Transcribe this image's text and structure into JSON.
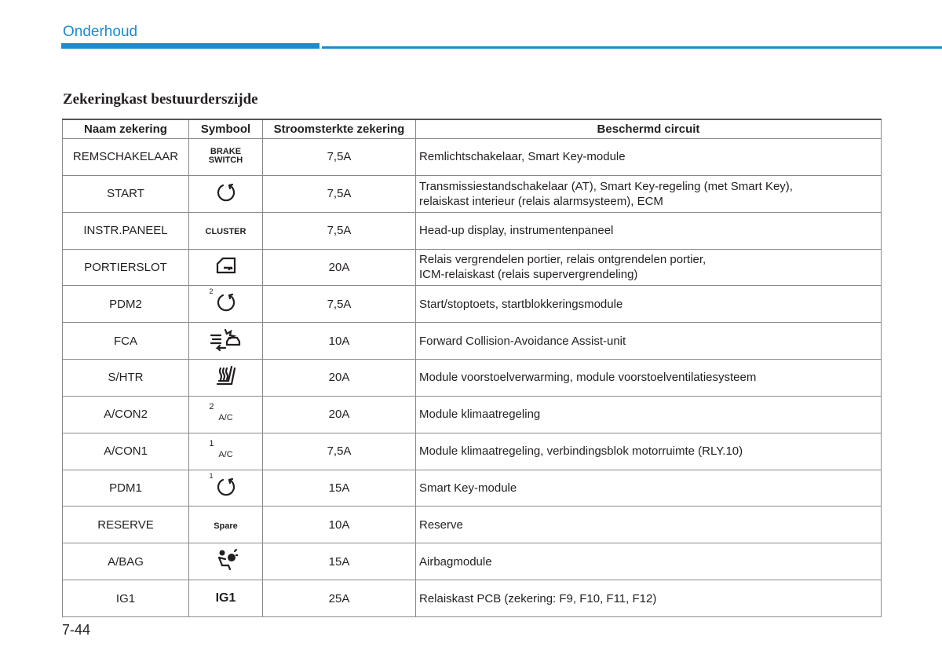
{
  "header": {
    "section": "Onderhoud"
  },
  "title": "Zekeringkast bestuurderszijde",
  "table": {
    "columns": [
      "Naam zekering",
      "Symbool",
      "Stroomsterkte zekering",
      "Beschermd circuit"
    ],
    "rows": [
      {
        "name": "REMSCHAKELAAR",
        "symbol": [
          "BRAKE",
          "SWITCH"
        ],
        "amp": "7,5A",
        "circuit": [
          "Remlichtschakelaar, Smart Key-module"
        ]
      },
      {
        "name": "START",
        "amp": "7,5A",
        "circuit": [
          "Transmissiestandschakelaar (AT), Smart Key-regeling (met Smart Key),",
          "relaiskast interieur (relais alarmsysteem), ECM"
        ]
      },
      {
        "name": "INSTR.PANEEL",
        "symbol": [
          "CLUSTER"
        ],
        "amp": "7,5A",
        "circuit": [
          "Head-up display, instrumentenpaneel"
        ]
      },
      {
        "name": "PORTIERSLOT",
        "amp": "20A",
        "circuit": [
          "Relais vergrendelen portier, relais ontgrendelen portier,",
          "ICM-relaiskast (relais supervergrendeling)"
        ]
      },
      {
        "name": "PDM2",
        "symbol_mark": "2",
        "amp": "7,5A",
        "circuit": [
          "Start/stoptoets, startblokkeringsmodule"
        ]
      },
      {
        "name": "FCA",
        "amp": "10A",
        "circuit": [
          "Forward Collision-Avoidance Assist-unit"
        ]
      },
      {
        "name": "S/HTR",
        "amp": "20A",
        "circuit": [
          "Module voorstoelverwarming, module voorstoelventilatiesysteem"
        ]
      },
      {
        "name": "A/CON2",
        "symbol_mark": "2",
        "symbol": [
          "A/C"
        ],
        "amp": "20A",
        "circuit": [
          "Module klimaatregeling"
        ]
      },
      {
        "name": "A/CON1",
        "symbol_mark": "1",
        "symbol": [
          "A/C"
        ],
        "amp": "7,5A",
        "circuit": [
          "Module klimaatregeling, verbindingsblok motorruimte (RLY.10)"
        ]
      },
      {
        "name": "PDM1",
        "symbol_mark": "1",
        "amp": "15A",
        "circuit": [
          "Smart Key-module"
        ]
      },
      {
        "name": "RESERVE",
        "symbol": [
          "Spare"
        ],
        "amp": "10A",
        "circuit": [
          "Reserve"
        ]
      },
      {
        "name": "A/BAG",
        "amp": "15A",
        "circuit": [
          "Airbagmodule"
        ]
      },
      {
        "name": "IG1",
        "symbol": [
          "IG1"
        ],
        "amp": "25A",
        "circuit": [
          "Relaiskast PCB (zekering: F9, F10, F11, F12)"
        ]
      }
    ]
  },
  "page_number": "7-44"
}
